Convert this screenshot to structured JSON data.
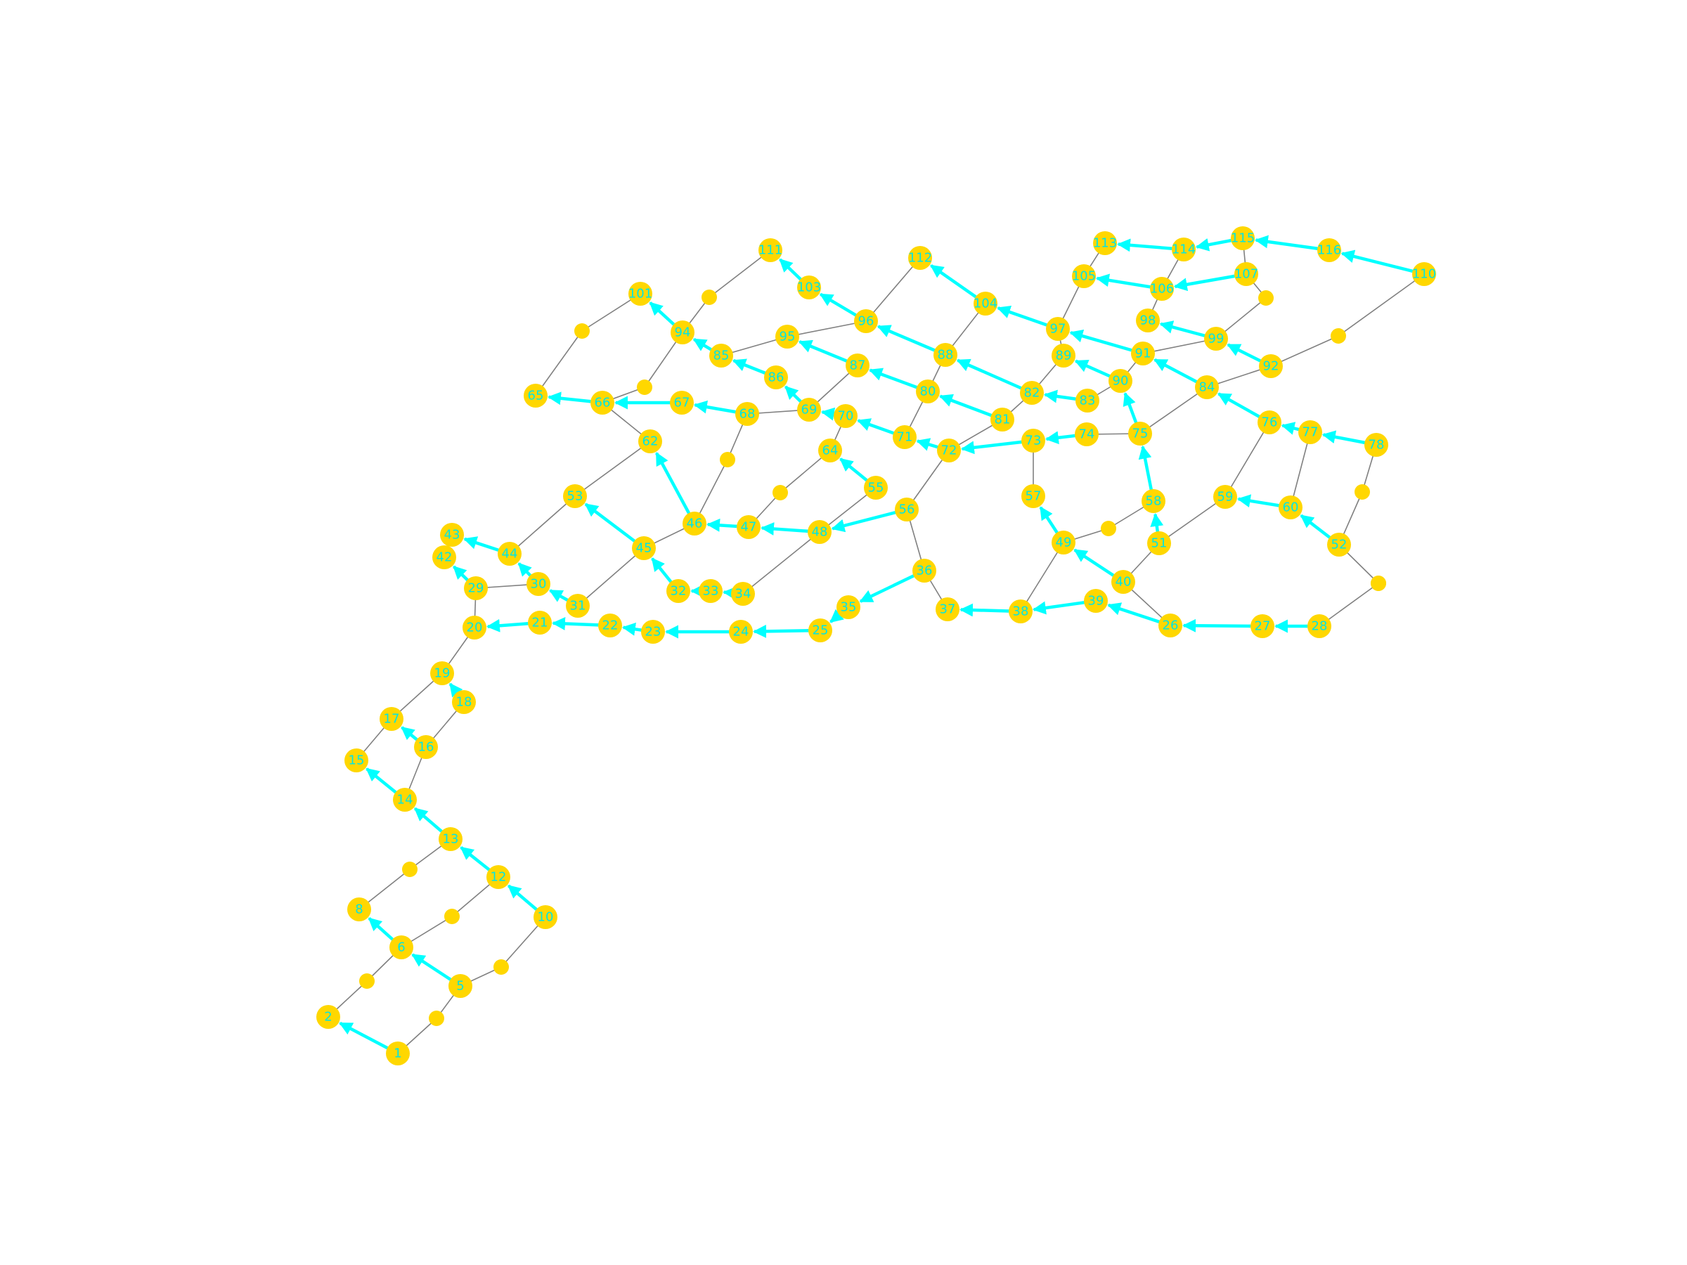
{
  "colors": {
    "node_fill": "#ffd700",
    "label_color": "#00e5e5",
    "plain_edge": "#808080",
    "directed_edge": "#00ffff",
    "background": "#ffffff"
  },
  "nodes": [
    {
      "id": "1",
      "label": "1"
    },
    {
      "id": "2",
      "label": "2"
    },
    {
      "id": "3",
      "label": ""
    },
    {
      "id": "4",
      "label": ""
    },
    {
      "id": "5",
      "label": "5"
    },
    {
      "id": "6",
      "label": "6"
    },
    {
      "id": "7",
      "label": ""
    },
    {
      "id": "8",
      "label": "8"
    },
    {
      "id": "9",
      "label": ""
    },
    {
      "id": "10",
      "label": "10"
    },
    {
      "id": "11",
      "label": ""
    },
    {
      "id": "12",
      "label": "12"
    },
    {
      "id": "13",
      "label": "13"
    },
    {
      "id": "14",
      "label": "14"
    },
    {
      "id": "15",
      "label": "15"
    },
    {
      "id": "16",
      "label": "16"
    },
    {
      "id": "17",
      "label": "17"
    },
    {
      "id": "18",
      "label": "18"
    },
    {
      "id": "19",
      "label": "19"
    },
    {
      "id": "20",
      "label": "20"
    },
    {
      "id": "21",
      "label": "21"
    },
    {
      "id": "22",
      "label": "22"
    },
    {
      "id": "23",
      "label": "23"
    },
    {
      "id": "24",
      "label": "24"
    },
    {
      "id": "25",
      "label": "25"
    },
    {
      "id": "26",
      "label": "26"
    },
    {
      "id": "27",
      "label": "27"
    },
    {
      "id": "28",
      "label": "28"
    },
    {
      "id": "29",
      "label": "29"
    },
    {
      "id": "30",
      "label": "30"
    },
    {
      "id": "31",
      "label": "31"
    },
    {
      "id": "32",
      "label": "32"
    },
    {
      "id": "33",
      "label": "33"
    },
    {
      "id": "34",
      "label": "34"
    },
    {
      "id": "35",
      "label": "35"
    },
    {
      "id": "36",
      "label": "36"
    },
    {
      "id": "37",
      "label": "37"
    },
    {
      "id": "38",
      "label": "38"
    },
    {
      "id": "39",
      "label": "39"
    },
    {
      "id": "40",
      "label": "40"
    },
    {
      "id": "41",
      "label": ""
    },
    {
      "id": "42",
      "label": "42"
    },
    {
      "id": "43",
      "label": "43"
    },
    {
      "id": "44",
      "label": "44"
    },
    {
      "id": "45",
      "label": "45"
    },
    {
      "id": "46",
      "label": "46"
    },
    {
      "id": "47",
      "label": "47"
    },
    {
      "id": "48",
      "label": "48"
    },
    {
      "id": "49",
      "label": "49"
    },
    {
      "id": "50",
      "label": ""
    },
    {
      "id": "51",
      "label": "51"
    },
    {
      "id": "52",
      "label": "52"
    },
    {
      "id": "53",
      "label": "53"
    },
    {
      "id": "54",
      "label": ""
    },
    {
      "id": "55",
      "label": "55"
    },
    {
      "id": "56",
      "label": "56"
    },
    {
      "id": "57",
      "label": "57"
    },
    {
      "id": "58",
      "label": "58"
    },
    {
      "id": "59",
      "label": "59"
    },
    {
      "id": "60",
      "label": "60"
    },
    {
      "id": "61",
      "label": ""
    },
    {
      "id": "62",
      "label": "62"
    },
    {
      "id": "63",
      "label": ""
    },
    {
      "id": "64",
      "label": "64"
    },
    {
      "id": "65",
      "label": "65"
    },
    {
      "id": "66",
      "label": "66"
    },
    {
      "id": "67",
      "label": "67"
    },
    {
      "id": "68",
      "label": "68"
    },
    {
      "id": "69",
      "label": "69"
    },
    {
      "id": "70",
      "label": "70"
    },
    {
      "id": "71",
      "label": "71"
    },
    {
      "id": "72",
      "label": "72"
    },
    {
      "id": "73",
      "label": "73"
    },
    {
      "id": "74",
      "label": "74"
    },
    {
      "id": "75",
      "label": "75"
    },
    {
      "id": "76",
      "label": "76"
    },
    {
      "id": "77",
      "label": "77"
    },
    {
      "id": "78",
      "label": "78"
    },
    {
      "id": "79",
      "label": ""
    },
    {
      "id": "80",
      "label": "80"
    },
    {
      "id": "81",
      "label": "81"
    },
    {
      "id": "82",
      "label": "82"
    },
    {
      "id": "83",
      "label": "83"
    },
    {
      "id": "84",
      "label": "84"
    },
    {
      "id": "85",
      "label": "85"
    },
    {
      "id": "86",
      "label": "86"
    },
    {
      "id": "87",
      "label": "87"
    },
    {
      "id": "88",
      "label": "88"
    },
    {
      "id": "89",
      "label": "89"
    },
    {
      "id": "90",
      "label": "90"
    },
    {
      "id": "91",
      "label": "91"
    },
    {
      "id": "92",
      "label": "92"
    },
    {
      "id": "93",
      "label": ""
    },
    {
      "id": "94",
      "label": "94"
    },
    {
      "id": "95",
      "label": "95"
    },
    {
      "id": "96",
      "label": "96"
    },
    {
      "id": "97",
      "label": "97"
    },
    {
      "id": "98",
      "label": "98"
    },
    {
      "id": "99",
      "label": "99"
    },
    {
      "id": "100",
      "label": ""
    },
    {
      "id": "101",
      "label": "101"
    },
    {
      "id": "102",
      "label": ""
    },
    {
      "id": "103",
      "label": "103"
    },
    {
      "id": "104",
      "label": "104"
    },
    {
      "id": "105",
      "label": "105"
    },
    {
      "id": "106",
      "label": "106"
    },
    {
      "id": "107",
      "label": "107"
    },
    {
      "id": "108",
      "label": ""
    },
    {
      "id": "109",
      "label": ""
    },
    {
      "id": "110",
      "label": "110"
    },
    {
      "id": "111",
      "label": "111"
    },
    {
      "id": "112",
      "label": "112"
    },
    {
      "id": "113",
      "label": "113"
    },
    {
      "id": "114",
      "label": "114"
    },
    {
      "id": "115",
      "label": "115"
    },
    {
      "id": "116",
      "label": "116"
    }
  ],
  "edges": [
    {
      "from": "1",
      "to": "2",
      "directed": true
    },
    {
      "from": "1",
      "to": "4",
      "directed": false
    },
    {
      "from": "2",
      "to": "3",
      "directed": false
    },
    {
      "from": "3",
      "to": "6",
      "directed": false
    },
    {
      "from": "4",
      "to": "5",
      "directed": false
    },
    {
      "from": "5",
      "to": "6",
      "directed": true
    },
    {
      "from": "5",
      "to": "11",
      "directed": false
    },
    {
      "from": "6",
      "to": "8",
      "directed": true
    },
    {
      "from": "6",
      "to": "7",
      "directed": false
    },
    {
      "from": "7",
      "to": "12",
      "directed": false
    },
    {
      "from": "8",
      "to": "9",
      "directed": false
    },
    {
      "from": "9",
      "to": "13",
      "directed": false
    },
    {
      "from": "10",
      "to": "12",
      "directed": true
    },
    {
      "from": "10",
      "to": "11",
      "directed": false
    },
    {
      "from": "12",
      "to": "13",
      "directed": true
    },
    {
      "from": "13",
      "to": "14",
      "directed": true
    },
    {
      "from": "14",
      "to": "15",
      "directed": true
    },
    {
      "from": "14",
      "to": "16",
      "directed": false
    },
    {
      "from": "15",
      "to": "17",
      "directed": false
    },
    {
      "from": "16",
      "to": "17",
      "directed": true
    },
    {
      "from": "16",
      "to": "18",
      "directed": false
    },
    {
      "from": "17",
      "to": "19",
      "directed": false
    },
    {
      "from": "18",
      "to": "19",
      "directed": true
    },
    {
      "from": "19",
      "to": "20",
      "directed": false
    },
    {
      "from": "21",
      "to": "20",
      "directed": true
    },
    {
      "from": "20",
      "to": "29",
      "directed": false
    },
    {
      "from": "22",
      "to": "21",
      "directed": true
    },
    {
      "from": "23",
      "to": "22",
      "directed": true
    },
    {
      "from": "24",
      "to": "23",
      "directed": true
    },
    {
      "from": "25",
      "to": "24",
      "directed": true
    },
    {
      "from": "35",
      "to": "25",
      "directed": true
    },
    {
      "from": "36",
      "to": "35",
      "directed": true
    },
    {
      "from": "36",
      "to": "37",
      "directed": false
    },
    {
      "from": "56",
      "to": "36",
      "directed": false
    },
    {
      "from": "38",
      "to": "37",
      "directed": true
    },
    {
      "from": "39",
      "to": "38",
      "directed": true
    },
    {
      "from": "38",
      "to": "49",
      "directed": false
    },
    {
      "from": "26",
      "to": "39",
      "directed": true
    },
    {
      "from": "27",
      "to": "26",
      "directed": true
    },
    {
      "from": "28",
      "to": "27",
      "directed": true
    },
    {
      "from": "26",
      "to": "40",
      "directed": false
    },
    {
      "from": "28",
      "to": "54",
      "directed": false
    },
    {
      "from": "54",
      "to": "52",
      "directed": false
    },
    {
      "from": "29",
      "to": "42",
      "directed": true
    },
    {
      "from": "29",
      "to": "30",
      "directed": false
    },
    {
      "from": "30",
      "to": "44",
      "directed": true
    },
    {
      "from": "31",
      "to": "30",
      "directed": true
    },
    {
      "from": "31",
      "to": "45",
      "directed": false
    },
    {
      "from": "44",
      "to": "43",
      "directed": true
    },
    {
      "from": "44",
      "to": "53",
      "directed": false
    },
    {
      "from": "32",
      "to": "45",
      "directed": true
    },
    {
      "from": "33",
      "to": "32",
      "directed": true
    },
    {
      "from": "34",
      "to": "33",
      "directed": true
    },
    {
      "from": "34",
      "to": "48",
      "directed": false
    },
    {
      "from": "45",
      "to": "53",
      "directed": true
    },
    {
      "from": "45",
      "to": "46",
      "directed": false
    },
    {
      "from": "53",
      "to": "62",
      "directed": false
    },
    {
      "from": "46",
      "to": "62",
      "directed": true
    },
    {
      "from": "47",
      "to": "46",
      "directed": true
    },
    {
      "from": "46",
      "to": "61",
      "directed": false
    },
    {
      "from": "48",
      "to": "47",
      "directed": true
    },
    {
      "from": "47",
      "to": "63",
      "directed": false
    },
    {
      "from": "56",
      "to": "48",
      "directed": true
    },
    {
      "from": "48",
      "to": "55",
      "directed": false
    },
    {
      "from": "55",
      "to": "64",
      "directed": true
    },
    {
      "from": "63",
      "to": "64",
      "directed": false
    },
    {
      "from": "64",
      "to": "70",
      "directed": false
    },
    {
      "from": "56",
      "to": "72",
      "directed": false
    },
    {
      "from": "40",
      "to": "49",
      "directed": true
    },
    {
      "from": "40",
      "to": "51",
      "directed": false
    },
    {
      "from": "49",
      "to": "57",
      "directed": true
    },
    {
      "from": "49",
      "to": "50",
      "directed": false
    },
    {
      "from": "50",
      "to": "58",
      "directed": false
    },
    {
      "from": "51",
      "to": "58",
      "directed": true
    },
    {
      "from": "51",
      "to": "59",
      "directed": false
    },
    {
      "from": "58",
      "to": "75",
      "directed": true
    },
    {
      "from": "57",
      "to": "73",
      "directed": false
    },
    {
      "from": "60",
      "to": "59",
      "directed": true
    },
    {
      "from": "59",
      "to": "76",
      "directed": false
    },
    {
      "from": "52",
      "to": "60",
      "directed": true
    },
    {
      "from": "60",
      "to": "77",
      "directed": false
    },
    {
      "from": "52",
      "to": "79",
      "directed": false
    },
    {
      "from": "79",
      "to": "78",
      "directed": false
    },
    {
      "from": "62",
      "to": "66",
      "directed": false
    },
    {
      "from": "61",
      "to": "68",
      "directed": false
    },
    {
      "from": "66",
      "to": "65",
      "directed": true
    },
    {
      "from": "65",
      "to": "100",
      "directed": false
    },
    {
      "from": "100",
      "to": "101",
      "directed": false
    },
    {
      "from": "67",
      "to": "66",
      "directed": true
    },
    {
      "from": "66",
      "to": "93",
      "directed": false
    },
    {
      "from": "93",
      "to": "94",
      "directed": false
    },
    {
      "from": "68",
      "to": "67",
      "directed": true
    },
    {
      "from": "68",
      "to": "69",
      "directed": false
    },
    {
      "from": "69",
      "to": "86",
      "directed": true
    },
    {
      "from": "69",
      "to": "87",
      "directed": false
    },
    {
      "from": "70",
      "to": "69",
      "directed": true
    },
    {
      "from": "71",
      "to": "70",
      "directed": true
    },
    {
      "from": "71",
      "to": "80",
      "directed": false
    },
    {
      "from": "72",
      "to": "71",
      "directed": true
    },
    {
      "from": "72",
      "to": "81",
      "directed": false
    },
    {
      "from": "73",
      "to": "72",
      "directed": true
    },
    {
      "from": "74",
      "to": "73",
      "directed": true
    },
    {
      "from": "74",
      "to": "75",
      "directed": false
    },
    {
      "from": "75",
      "to": "90",
      "directed": true
    },
    {
      "from": "75",
      "to": "84",
      "directed": false
    },
    {
      "from": "76",
      "to": "84",
      "directed": true
    },
    {
      "from": "77",
      "to": "76",
      "directed": true
    },
    {
      "from": "78",
      "to": "77",
      "directed": true
    },
    {
      "from": "81",
      "to": "80",
      "directed": true
    },
    {
      "from": "80",
      "to": "87",
      "directed": true
    },
    {
      "from": "80",
      "to": "88",
      "directed": false
    },
    {
      "from": "81",
      "to": "82",
      "directed": false
    },
    {
      "from": "82",
      "to": "88",
      "directed": true
    },
    {
      "from": "83",
      "to": "82",
      "directed": true
    },
    {
      "from": "82",
      "to": "89",
      "directed": false
    },
    {
      "from": "83",
      "to": "90",
      "directed": false
    },
    {
      "from": "84",
      "to": "91",
      "directed": true
    },
    {
      "from": "84",
      "to": "92",
      "directed": false
    },
    {
      "from": "86",
      "to": "85",
      "directed": true
    },
    {
      "from": "85",
      "to": "94",
      "directed": true
    },
    {
      "from": "85",
      "to": "95",
      "directed": false
    },
    {
      "from": "87",
      "to": "95",
      "directed": true
    },
    {
      "from": "88",
      "to": "96",
      "directed": true
    },
    {
      "from": "88",
      "to": "104",
      "directed": false
    },
    {
      "from": "90",
      "to": "89",
      "directed": true
    },
    {
      "from": "89",
      "to": "97",
      "directed": false
    },
    {
      "from": "90",
      "to": "91",
      "directed": false
    },
    {
      "from": "91",
      "to": "97",
      "directed": true
    },
    {
      "from": "91",
      "to": "99",
      "directed": false
    },
    {
      "from": "92",
      "to": "99",
      "directed": true
    },
    {
      "from": "92",
      "to": "109",
      "directed": false
    },
    {
      "from": "109",
      "to": "110",
      "directed": false
    },
    {
      "from": "94",
      "to": "101",
      "directed": true
    },
    {
      "from": "94",
      "to": "102",
      "directed": false
    },
    {
      "from": "102",
      "to": "111",
      "directed": false
    },
    {
      "from": "95",
      "to": "96",
      "directed": false
    },
    {
      "from": "96",
      "to": "103",
      "directed": true
    },
    {
      "from": "96",
      "to": "112",
      "directed": false
    },
    {
      "from": "97",
      "to": "104",
      "directed": true
    },
    {
      "from": "97",
      "to": "105",
      "directed": false
    },
    {
      "from": "99",
      "to": "98",
      "directed": true
    },
    {
      "from": "99",
      "to": "108",
      "directed": false
    },
    {
      "from": "108",
      "to": "107",
      "directed": false
    },
    {
      "from": "98",
      "to": "106",
      "directed": false
    },
    {
      "from": "103",
      "to": "111",
      "directed": true
    },
    {
      "from": "104",
      "to": "112",
      "directed": true
    },
    {
      "from": "105",
      "to": "113",
      "directed": false
    },
    {
      "from": "106",
      "to": "105",
      "directed": true
    },
    {
      "from": "106",
      "to": "114",
      "directed": false
    },
    {
      "from": "107",
      "to": "106",
      "directed": true
    },
    {
      "from": "107",
      "to": "115",
      "directed": false
    },
    {
      "from": "114",
      "to": "113",
      "directed": true
    },
    {
      "from": "115",
      "to": "114",
      "directed": true
    },
    {
      "from": "116",
      "to": "115",
      "directed": true
    },
    {
      "from": "110",
      "to": "116",
      "directed": true
    }
  ]
}
